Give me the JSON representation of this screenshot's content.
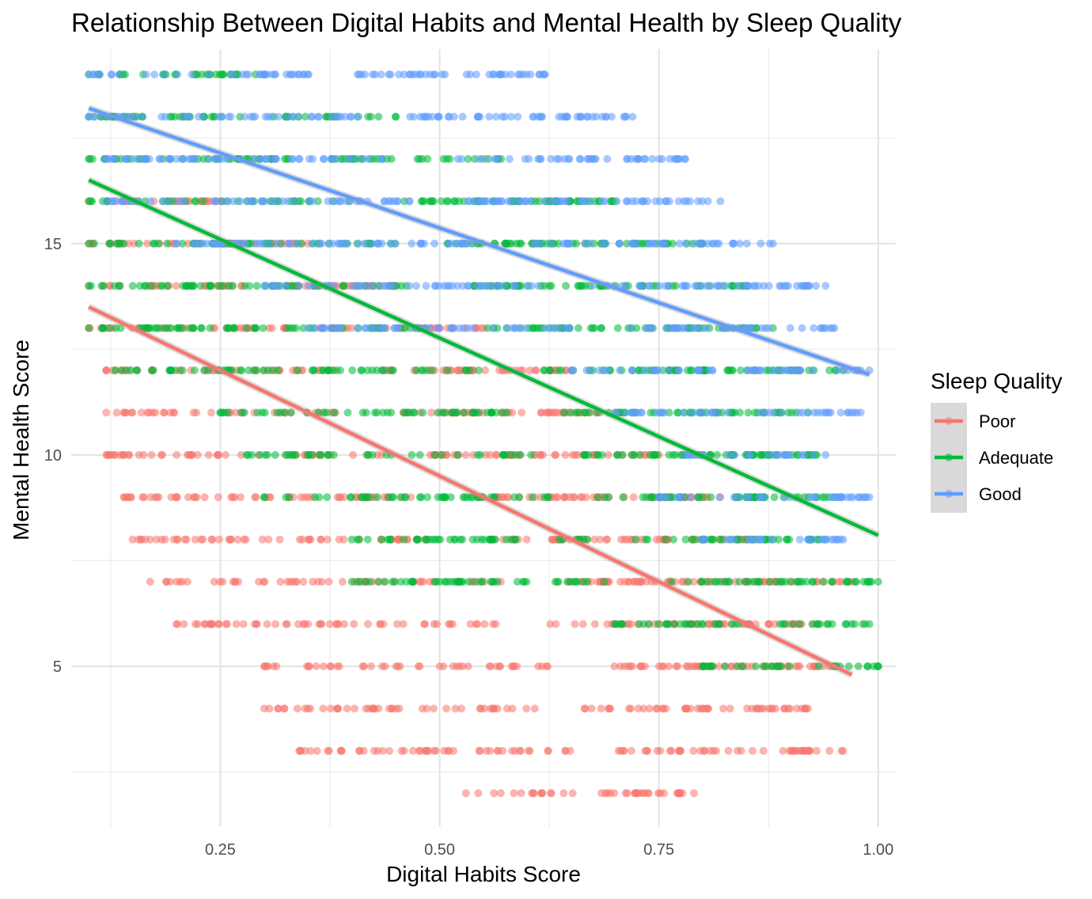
{
  "chart_data": {
    "type": "scatter",
    "title": "Relationship Between Digital Habits and Mental Health by Sleep Quality",
    "xlabel": "Digital Habits Score",
    "ylabel": "Mental Health Score",
    "xlim": [
      0.08,
      1.02
    ],
    "ylim": [
      1.2,
      19.6
    ],
    "x_ticks": [
      {
        "value": 0.25,
        "label": "0.25"
      },
      {
        "value": 0.5,
        "label": "0.50"
      },
      {
        "value": 0.75,
        "label": "0.75"
      },
      {
        "value": 1.0,
        "label": "1.00"
      }
    ],
    "y_ticks": [
      {
        "value": 5,
        "label": "5"
      },
      {
        "value": 10,
        "label": "10"
      },
      {
        "value": 15,
        "label": "15"
      }
    ],
    "grid": true,
    "legend": {
      "title": "Sleep Quality",
      "position": "right"
    },
    "series": [
      {
        "name": "Poor",
        "color": "#F8766D",
        "trend": {
          "x": [
            0.1,
            0.97
          ],
          "y": [
            13.5,
            4.8
          ]
        },
        "bands": [
          {
            "y": 2,
            "xmin": 0.53,
            "xmax": 0.79
          },
          {
            "y": 3,
            "xmin": 0.34,
            "xmax": 0.96
          },
          {
            "y": 4,
            "xmin": 0.3,
            "xmax": 0.92
          },
          {
            "y": 5,
            "xmin": 0.3,
            "xmax": 0.95
          },
          {
            "y": 6,
            "xmin": 0.2,
            "xmax": 0.93
          },
          {
            "y": 7,
            "xmin": 0.17,
            "xmax": 0.97
          },
          {
            "y": 8,
            "xmin": 0.15,
            "xmax": 0.85
          },
          {
            "y": 9,
            "xmin": 0.14,
            "xmax": 0.82
          },
          {
            "y": 10,
            "xmin": 0.12,
            "xmax": 0.75
          },
          {
            "y": 11,
            "xmin": 0.12,
            "xmax": 0.7
          },
          {
            "y": 12,
            "xmin": 0.12,
            "xmax": 0.65
          },
          {
            "y": 13,
            "xmin": 0.1,
            "xmax": 0.55
          },
          {
            "y": 14,
            "xmin": 0.1,
            "xmax": 0.45
          },
          {
            "y": 15,
            "xmin": 0.1,
            "xmax": 0.35
          },
          {
            "y": 16,
            "xmin": 0.1,
            "xmax": 0.25
          }
        ]
      },
      {
        "name": "Adequate",
        "color": "#00BA38",
        "trend": {
          "x": [
            0.1,
            1.0
          ],
          "y": [
            16.5,
            8.1
          ]
        },
        "bands": [
          {
            "y": 5,
            "xmin": 0.8,
            "xmax": 1.0
          },
          {
            "y": 6,
            "xmin": 0.7,
            "xmax": 0.99
          },
          {
            "y": 7,
            "xmin": 0.4,
            "xmax": 1.0
          },
          {
            "y": 8,
            "xmin": 0.4,
            "xmax": 0.94
          },
          {
            "y": 9,
            "xmin": 0.3,
            "xmax": 0.95
          },
          {
            "y": 10,
            "xmin": 0.28,
            "xmax": 0.93
          },
          {
            "y": 11,
            "xmin": 0.25,
            "xmax": 0.92
          },
          {
            "y": 12,
            "xmin": 0.13,
            "xmax": 0.96
          },
          {
            "y": 13,
            "xmin": 0.1,
            "xmax": 0.88
          },
          {
            "y": 14,
            "xmin": 0.1,
            "xmax": 0.85
          },
          {
            "y": 15,
            "xmin": 0.1,
            "xmax": 0.8
          },
          {
            "y": 16,
            "xmin": 0.1,
            "xmax": 0.7
          },
          {
            "y": 17,
            "xmin": 0.1,
            "xmax": 0.57
          },
          {
            "y": 18,
            "xmin": 0.1,
            "xmax": 0.45
          },
          {
            "y": 19,
            "xmin": 0.1,
            "xmax": 0.3
          }
        ]
      },
      {
        "name": "Good",
        "color": "#619CFF",
        "trend": {
          "x": [
            0.1,
            0.99
          ],
          "y": [
            18.2,
            11.9
          ]
        },
        "bands": [
          {
            "y": 8,
            "xmin": 0.8,
            "xmax": 0.96
          },
          {
            "y": 9,
            "xmin": 0.75,
            "xmax": 0.99
          },
          {
            "y": 10,
            "xmin": 0.78,
            "xmax": 0.94
          },
          {
            "y": 11,
            "xmin": 0.7,
            "xmax": 0.98
          },
          {
            "y": 12,
            "xmin": 0.65,
            "xmax": 0.99
          },
          {
            "y": 13,
            "xmin": 0.35,
            "xmax": 0.95
          },
          {
            "y": 14,
            "xmin": 0.3,
            "xmax": 0.94
          },
          {
            "y": 15,
            "xmin": 0.2,
            "xmax": 0.88
          },
          {
            "y": 16,
            "xmin": 0.12,
            "xmax": 0.82
          },
          {
            "y": 17,
            "xmin": 0.12,
            "xmax": 0.78
          },
          {
            "y": 18,
            "xmin": 0.1,
            "xmax": 0.72
          },
          {
            "y": 19,
            "xmin": 0.1,
            "xmax": 0.62
          }
        ]
      }
    ]
  }
}
